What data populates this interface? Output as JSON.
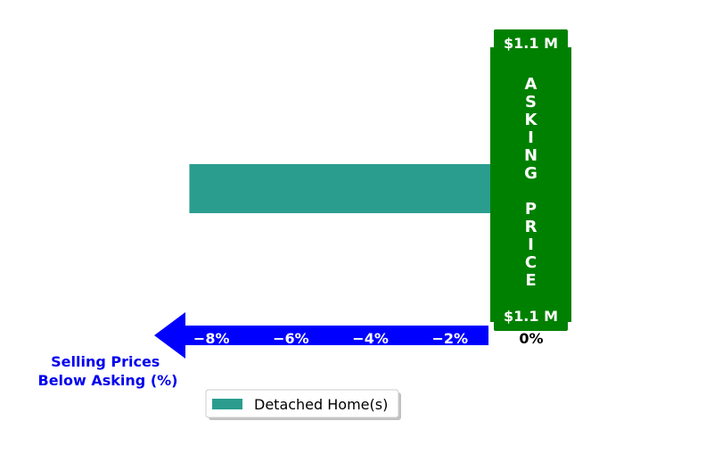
{
  "chart_data": {
    "type": "bar",
    "orientation": "horizontal",
    "series": [
      {
        "name": "Detached Home(s)",
        "values": [
          -8.6
        ]
      }
    ],
    "x_ticks": [
      {
        "value": -8,
        "label": "−8%"
      },
      {
        "value": -6,
        "label": "−6%"
      },
      {
        "value": -4,
        "label": "−4%"
      },
      {
        "value": -2,
        "label": "−2%"
      },
      {
        "value": 0,
        "label": "0%"
      }
    ],
    "xlim": [
      -9.0,
      0
    ],
    "xlabel_lines": [
      "Selling Prices",
      "Below Asking (%)"
    ],
    "asking_price": {
      "top_label": "$1.1 M",
      "bottom_label": "$1.1 M",
      "vertical_text": "ASKING PRICE"
    },
    "legend": {
      "placement": "bottom-left"
    },
    "grid": false,
    "colors": {
      "bar": "#2a9d8f",
      "asking_panel": "#008000",
      "axis_arrow": "#0000ff",
      "axis_label": "#0000ee"
    }
  }
}
